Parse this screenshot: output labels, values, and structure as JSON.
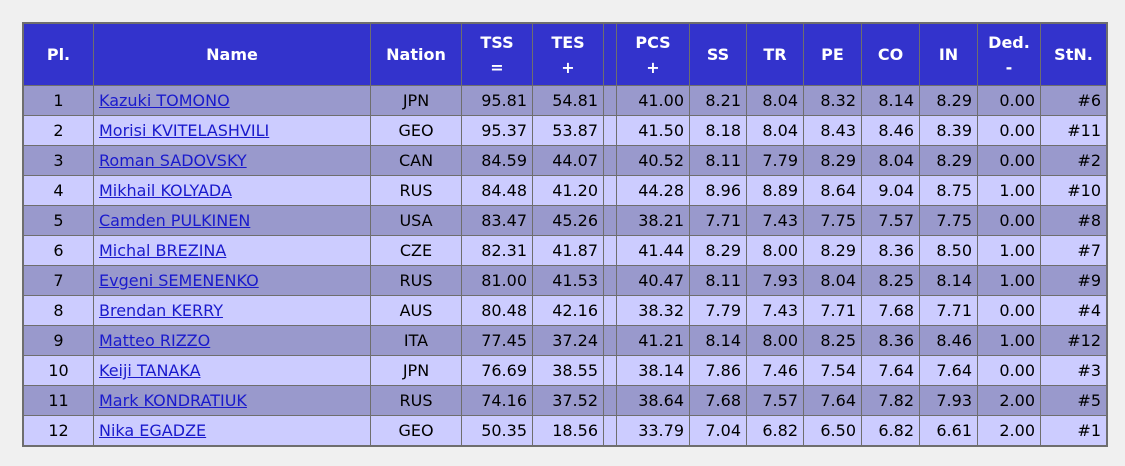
{
  "columns": {
    "pl": "Pl.",
    "name": "Name",
    "nation": "Nation",
    "tss": [
      "TSS",
      "="
    ],
    "tes": [
      "TES",
      "+"
    ],
    "pcs": [
      "PCS",
      "+"
    ],
    "ss": "SS",
    "tr": "TR",
    "pe": "PE",
    "co": "CO",
    "in": "IN",
    "ded": [
      "Ded.",
      "-"
    ],
    "stn": "StN."
  },
  "rows": [
    {
      "pl": "1",
      "name": "Kazuki TOMONO",
      "nation": "JPN",
      "tss": "95.81",
      "tes": "54.81",
      "pcs": "41.00",
      "ss": "8.21",
      "tr": "8.04",
      "pe": "8.32",
      "co": "8.14",
      "in": "8.29",
      "ded": "0.00",
      "stn": "#6"
    },
    {
      "pl": "2",
      "name": "Morisi KVITELASHVILI",
      "nation": "GEO",
      "tss": "95.37",
      "tes": "53.87",
      "pcs": "41.50",
      "ss": "8.18",
      "tr": "8.04",
      "pe": "8.43",
      "co": "8.46",
      "in": "8.39",
      "ded": "0.00",
      "stn": "#11"
    },
    {
      "pl": "3",
      "name": "Roman SADOVSKY",
      "nation": "CAN",
      "tss": "84.59",
      "tes": "44.07",
      "pcs": "40.52",
      "ss": "8.11",
      "tr": "7.79",
      "pe": "8.29",
      "co": "8.04",
      "in": "8.29",
      "ded": "0.00",
      "stn": "#2"
    },
    {
      "pl": "4",
      "name": "Mikhail KOLYADA",
      "nation": "RUS",
      "tss": "84.48",
      "tes": "41.20",
      "pcs": "44.28",
      "ss": "8.96",
      "tr": "8.89",
      "pe": "8.64",
      "co": "9.04",
      "in": "8.75",
      "ded": "1.00",
      "stn": "#10"
    },
    {
      "pl": "5",
      "name": "Camden PULKINEN",
      "nation": "USA",
      "tss": "83.47",
      "tes": "45.26",
      "pcs": "38.21",
      "ss": "7.71",
      "tr": "7.43",
      "pe": "7.75",
      "co": "7.57",
      "in": "7.75",
      "ded": "0.00",
      "stn": "#8"
    },
    {
      "pl": "6",
      "name": "Michal BREZINA",
      "nation": "CZE",
      "tss": "82.31",
      "tes": "41.87",
      "pcs": "41.44",
      "ss": "8.29",
      "tr": "8.00",
      "pe": "8.29",
      "co": "8.36",
      "in": "8.50",
      "ded": "1.00",
      "stn": "#7"
    },
    {
      "pl": "7",
      "name": "Evgeni SEMENENKO",
      "nation": "RUS",
      "tss": "81.00",
      "tes": "41.53",
      "pcs": "40.47",
      "ss": "8.11",
      "tr": "7.93",
      "pe": "8.04",
      "co": "8.25",
      "in": "8.14",
      "ded": "1.00",
      "stn": "#9"
    },
    {
      "pl": "8",
      "name": "Brendan KERRY",
      "nation": "AUS",
      "tss": "80.48",
      "tes": "42.16",
      "pcs": "38.32",
      "ss": "7.79",
      "tr": "7.43",
      "pe": "7.71",
      "co": "7.68",
      "in": "7.71",
      "ded": "0.00",
      "stn": "#4"
    },
    {
      "pl": "9",
      "name": "Matteo RIZZO",
      "nation": "ITA",
      "tss": "77.45",
      "tes": "37.24",
      "pcs": "41.21",
      "ss": "8.14",
      "tr": "8.00",
      "pe": "8.25",
      "co": "8.36",
      "in": "8.46",
      "ded": "1.00",
      "stn": "#12"
    },
    {
      "pl": "10",
      "name": "Keiji TANAKA",
      "nation": "JPN",
      "tss": "76.69",
      "tes": "38.55",
      "pcs": "38.14",
      "ss": "7.86",
      "tr": "7.46",
      "pe": "7.54",
      "co": "7.64",
      "in": "7.64",
      "ded": "0.00",
      "stn": "#3"
    },
    {
      "pl": "11",
      "name": "Mark KONDRATIUK",
      "nation": "RUS",
      "tss": "74.16",
      "tes": "37.52",
      "pcs": "38.64",
      "ss": "7.68",
      "tr": "7.57",
      "pe": "7.64",
      "co": "7.82",
      "in": "7.93",
      "ded": "2.00",
      "stn": "#5"
    },
    {
      "pl": "12",
      "name": "Nika EGADZE",
      "nation": "GEO",
      "tss": "50.35",
      "tes": "18.56",
      "pcs": "33.79",
      "ss": "7.04",
      "tr": "6.82",
      "pe": "6.50",
      "co": "6.82",
      "in": "6.61",
      "ded": "2.00",
      "stn": "#1"
    }
  ],
  "colors": {
    "header_bg": "#3333cc",
    "row_dark": "#9999cc",
    "row_light": "#ccccff",
    "link": "#1a1acc"
  }
}
